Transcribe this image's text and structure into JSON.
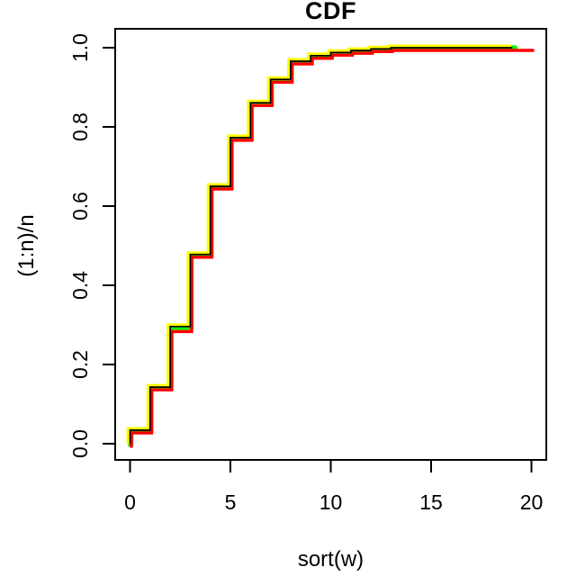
{
  "figure": {
    "title": "CDF",
    "xlabel": "sort(w)",
    "ylabel": "(1:n)/n"
  },
  "chart_data": {
    "type": "line",
    "subtype": "step-ecdf",
    "title": "CDF",
    "xlabel": "sort(w)",
    "ylabel": "(1:n)/n",
    "xlim": [
      0,
      20
    ],
    "ylim": [
      0,
      1
    ],
    "x_ticks": [
      0,
      5,
      10,
      15,
      20
    ],
    "y_ticks": [
      0.0,
      0.2,
      0.4,
      0.6,
      0.8,
      1.0
    ],
    "grid": false,
    "legend": false,
    "background": "#ffffff",
    "axis_color": "#000000",
    "step_x": [
      0,
      1,
      2,
      3,
      4,
      5,
      6,
      7,
      8,
      9,
      10,
      11,
      12,
      13
    ],
    "series": [
      {
        "name": "ecdf-green",
        "color": "#00ff00",
        "x_end": 19.15,
        "levels": [
          0.034,
          0.143,
          0.296,
          0.478,
          0.65,
          0.773,
          0.861,
          0.92,
          0.966,
          0.98,
          0.988,
          0.993,
          0.997,
          1.0
        ]
      },
      {
        "name": "ecdf-yellow",
        "color": "#ffff00",
        "x_end": 19.0,
        "levels": [
          0.034,
          0.143,
          0.296,
          0.478,
          0.65,
          0.773,
          0.861,
          0.92,
          0.966,
          0.98,
          0.988,
          0.993,
          0.997,
          1.0
        ]
      },
      {
        "name": "ecdf-red",
        "color": "#ff0000",
        "x_end": 20.0,
        "levels": [
          0.034,
          0.143,
          0.29,
          0.478,
          0.65,
          0.773,
          0.861,
          0.92,
          0.966,
          0.98,
          0.988,
          0.993,
          0.997,
          1.0
        ]
      },
      {
        "name": "ecdf-black",
        "color": "#000000",
        "x_end": 19.05,
        "levels": [
          0.034,
          0.143,
          0.296,
          0.478,
          0.65,
          0.773,
          0.861,
          0.92,
          0.966,
          0.98,
          0.988,
          0.993,
          0.997,
          1.0
        ]
      }
    ]
  }
}
